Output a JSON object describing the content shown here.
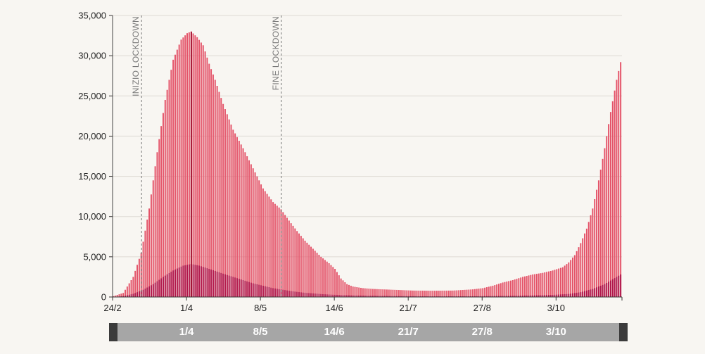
{
  "chart_data": {
    "type": "bar",
    "title": "",
    "xlabel": "",
    "ylabel": "",
    "ylim": [
      0,
      35000
    ],
    "y_ticks": [
      "0",
      "5,000",
      "10,000",
      "15,000",
      "20,000",
      "25,000",
      "30,000",
      "35,000"
    ],
    "x_ticks": [
      {
        "label": "24/2",
        "day": 0
      },
      {
        "label": "1/4",
        "day": 37
      },
      {
        "label": "8/5",
        "day": 74
      },
      {
        "label": "14/6",
        "day": 111
      },
      {
        "label": "21/7",
        "day": 148
      },
      {
        "label": "27/8",
        "day": 185
      },
      {
        "label": "3/10",
        "day": 222
      }
    ],
    "date_range": {
      "start": "24/2",
      "end": "29/10"
    },
    "grid": true,
    "highlight_day": 39,
    "annotations": [
      {
        "label": "INIZIO LOCKDOWN",
        "day": 14
      },
      {
        "label": "FINE LOCKDOWN",
        "day": 84
      }
    ],
    "series": [
      {
        "color": "#e45268",
        "keypoints": [
          [
            0,
            100
          ],
          [
            5,
            500
          ],
          [
            10,
            2500
          ],
          [
            14,
            5500
          ],
          [
            18,
            11000
          ],
          [
            22,
            18000
          ],
          [
            26,
            24500
          ],
          [
            30,
            29500
          ],
          [
            34,
            32000
          ],
          [
            37,
            32800
          ],
          [
            39,
            33000
          ],
          [
            42,
            32300
          ],
          [
            45,
            31300
          ],
          [
            48,
            29000
          ],
          [
            51,
            27000
          ],
          [
            55,
            24000
          ],
          [
            60,
            20800
          ],
          [
            65,
            18500
          ],
          [
            70,
            16000
          ],
          [
            75,
            13500
          ],
          [
            80,
            11800
          ],
          [
            84,
            10900
          ],
          [
            88,
            9500
          ],
          [
            92,
            8200
          ],
          [
            96,
            7000
          ],
          [
            100,
            6000
          ],
          [
            104,
            5000
          ],
          [
            108,
            4200
          ],
          [
            111,
            3500
          ],
          [
            114,
            2300
          ],
          [
            117,
            1600
          ],
          [
            120,
            1300
          ],
          [
            125,
            1100
          ],
          [
            130,
            1000
          ],
          [
            140,
            900
          ],
          [
            150,
            800
          ],
          [
            160,
            780
          ],
          [
            170,
            800
          ],
          [
            180,
            950
          ],
          [
            185,
            1100
          ],
          [
            190,
            1400
          ],
          [
            195,
            1800
          ],
          [
            200,
            2100
          ],
          [
            205,
            2500
          ],
          [
            210,
            2800
          ],
          [
            215,
            3000
          ],
          [
            220,
            3300
          ],
          [
            225,
            3700
          ],
          [
            228,
            4300
          ],
          [
            231,
            5200
          ],
          [
            234,
            6700
          ],
          [
            237,
            8500
          ],
          [
            240,
            11000
          ],
          [
            243,
            14500
          ],
          [
            246,
            18500
          ],
          [
            249,
            23000
          ],
          [
            252,
            27000
          ],
          [
            254,
            29200
          ]
        ]
      },
      {
        "color": "#b0154a",
        "keypoints": [
          [
            0,
            0
          ],
          [
            5,
            100
          ],
          [
            10,
            400
          ],
          [
            15,
            900
          ],
          [
            20,
            1600
          ],
          [
            25,
            2500
          ],
          [
            30,
            3300
          ],
          [
            35,
            3900
          ],
          [
            39,
            4100
          ],
          [
            43,
            3900
          ],
          [
            48,
            3500
          ],
          [
            55,
            2900
          ],
          [
            60,
            2500
          ],
          [
            65,
            2100
          ],
          [
            70,
            1700
          ],
          [
            75,
            1400
          ],
          [
            80,
            1100
          ],
          [
            85,
            900
          ],
          [
            90,
            700
          ],
          [
            95,
            550
          ],
          [
            100,
            450
          ],
          [
            105,
            350
          ],
          [
            110,
            280
          ],
          [
            120,
            200
          ],
          [
            140,
            120
          ],
          [
            160,
            80
          ],
          [
            180,
            90
          ],
          [
            200,
            150
          ],
          [
            210,
            200
          ],
          [
            220,
            260
          ],
          [
            228,
            380
          ],
          [
            234,
            600
          ],
          [
            240,
            1000
          ],
          [
            246,
            1600
          ],
          [
            250,
            2200
          ],
          [
            254,
            2800
          ]
        ]
      }
    ]
  },
  "slider": {
    "labels": [
      {
        "text": "1/4",
        "day": 37
      },
      {
        "text": "8/5",
        "day": 74
      },
      {
        "text": "14/6",
        "day": 111
      },
      {
        "text": "21/7",
        "day": 148
      },
      {
        "text": "27/8",
        "day": 185
      },
      {
        "text": "3/10",
        "day": 222
      }
    ]
  }
}
